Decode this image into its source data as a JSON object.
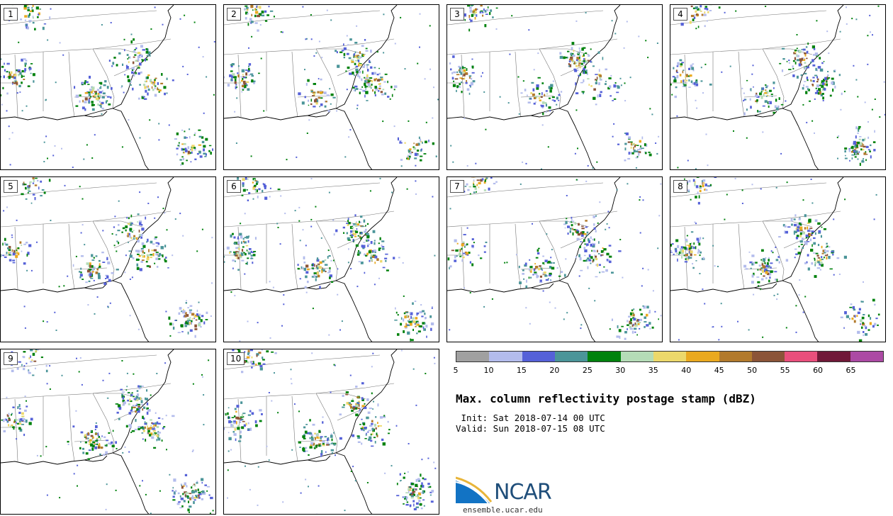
{
  "panels": [
    "1",
    "2",
    "3",
    "4",
    "5",
    "6",
    "7",
    "8",
    "9",
    "10"
  ],
  "colorbar": {
    "colors": [
      "#a0a0a0",
      "#b3bcec",
      "#5561d8",
      "#4b9599",
      "#00820d",
      "#b5dcb7",
      "#ecd86b",
      "#eaa91f",
      "#b27a2c",
      "#8b5438",
      "#e94f7c",
      "#701838",
      "#ac4aa4"
    ],
    "ticks": [
      "5",
      "10",
      "15",
      "20",
      "25",
      "30",
      "35",
      "40",
      "45",
      "50",
      "55",
      "60",
      "65"
    ]
  },
  "title": "Max. column reflectivity postage stamp (dBZ)",
  "init": " Init: Sat 2018-07-14 00 UTC",
  "valid": "Valid: Sun 2018-07-15 08 UTC",
  "logo": {
    "text": "NCAR",
    "site": "ensemble.ucar.edu",
    "brand_color": "#1f4e7a"
  }
}
